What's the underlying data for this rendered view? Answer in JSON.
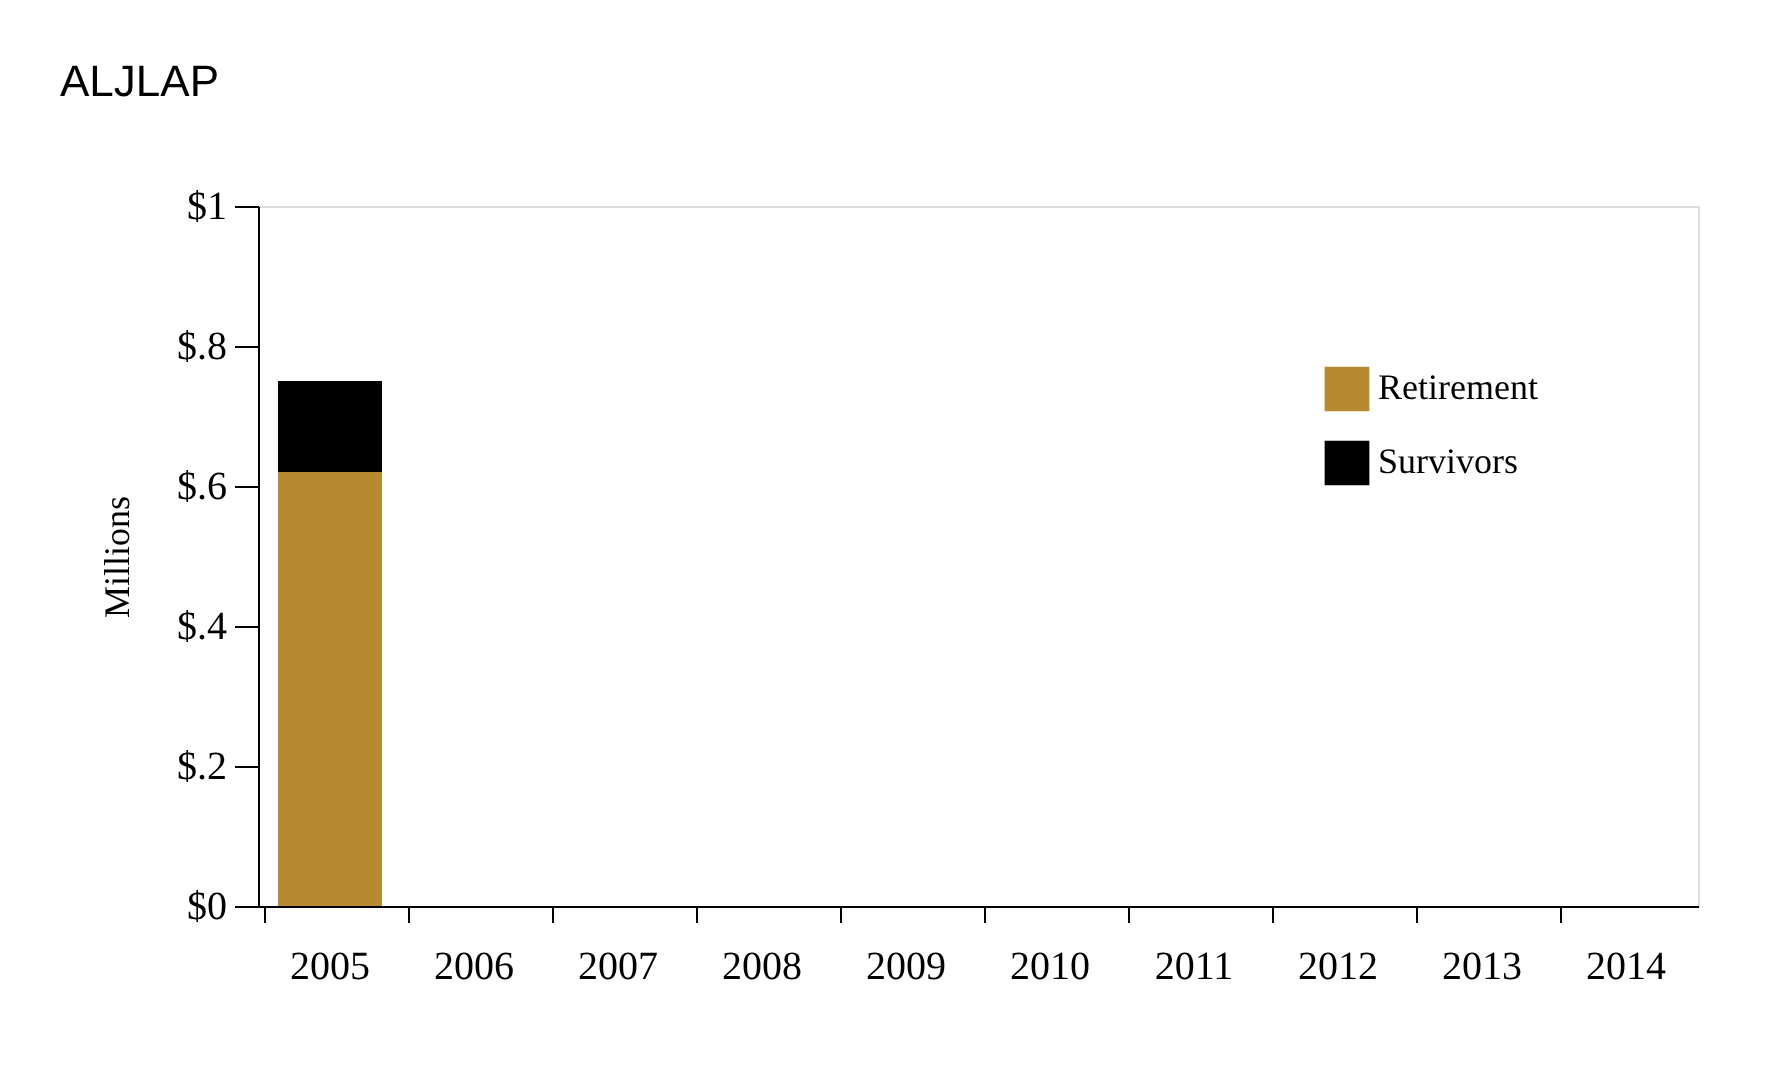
{
  "chart_data": {
    "type": "bar",
    "title": "ALJLAP",
    "ylabel": "Millions",
    "stacked": true,
    "legend": "top right",
    "categories": [
      "2005",
      "2006",
      "2007",
      "2008",
      "2009",
      "2010",
      "2011",
      "2012",
      "2013",
      "2014"
    ],
    "series": [
      {
        "name": "Retirement",
        "color": "#b88a30",
        "values": [
          0.62,
          null,
          null,
          null,
          null,
          null,
          null,
          null,
          null,
          null
        ]
      },
      {
        "name": "Survivors",
        "color": "#000000",
        "values": [
          0.13,
          null,
          null,
          null,
          null,
          null,
          null,
          null,
          null,
          null
        ]
      }
    ],
    "ylim": [
      0,
      1
    ],
    "yticks": [
      {
        "value": 0,
        "label": "$0"
      },
      {
        "value": 0.2,
        "label": "$.2"
      },
      {
        "value": 0.4,
        "label": "$.4"
      },
      {
        "value": 0.6,
        "label": "$.6"
      },
      {
        "value": 0.8,
        "label": "$.8"
      },
      {
        "value": 1,
        "label": "$1"
      }
    ],
    "grid": false
  }
}
